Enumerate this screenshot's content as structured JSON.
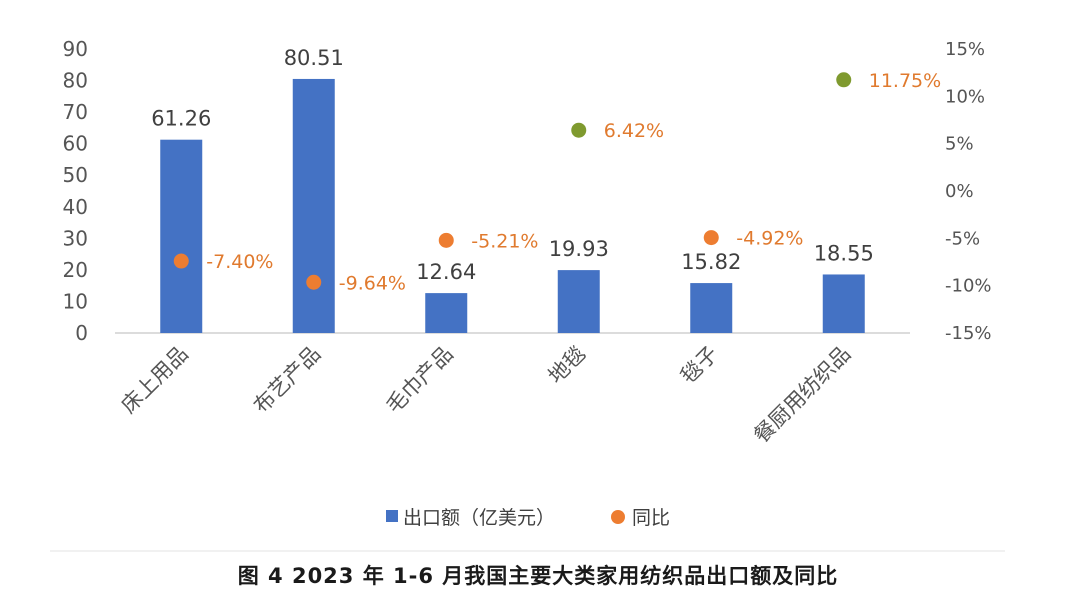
{
  "chart_data": {
    "type": "bar",
    "categories": [
      "床上用品",
      "布艺产品",
      "毛巾产品",
      "地毯",
      "毯子",
      "餐厨用纺织品"
    ],
    "series": [
      {
        "name": "出口额（亿美元）",
        "type": "bar",
        "axis": "left",
        "values": [
          61.26,
          80.51,
          12.64,
          19.93,
          15.82,
          18.55
        ],
        "value_labels": [
          "61.26",
          "80.51",
          "12.64",
          "19.93",
          "15.82",
          "18.55"
        ],
        "color": "#4472c4"
      },
      {
        "name": "同比",
        "type": "scatter",
        "axis": "right",
        "values": [
          -7.4,
          -9.64,
          -5.21,
          6.42,
          -4.92,
          11.75
        ],
        "value_labels": [
          "-7.40%",
          "-9.64%",
          "-5.21%",
          "6.42%",
          "-4.92%",
          "11.75%"
        ],
        "colors": [
          "#ed7d31",
          "#ed7d31",
          "#ed7d31",
          "#7f9a2f",
          "#ed7d31",
          "#7f9a2f"
        ]
      }
    ],
    "y_left": {
      "ylim": [
        0,
        90
      ],
      "ticks": [
        0,
        10,
        20,
        30,
        40,
        50,
        60,
        70,
        80,
        90
      ]
    },
    "y_right": {
      "ylim": [
        -15,
        15
      ],
      "ticks": [
        -15,
        -10,
        -5,
        0,
        5,
        10,
        15
      ],
      "tick_labels": [
        "-15%",
        "-10%",
        "-5%",
        "0%",
        "5%",
        "10%",
        "15%"
      ]
    },
    "legend": {
      "position": "bottom",
      "entries": [
        "出口额（亿美元）",
        "同比"
      ]
    },
    "grid": false
  },
  "caption": "图 4  2023 年 1-6 月我国主要大类家用纺织品出口额及同比"
}
